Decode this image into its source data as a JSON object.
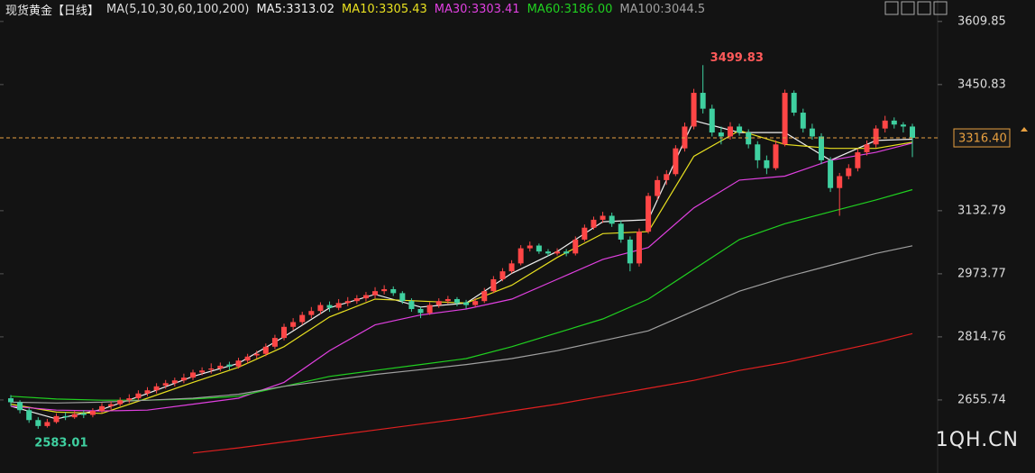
{
  "chart_data": {
    "type": "candlestick",
    "title": "现货黄金【日线】",
    "indicator": "MA(5,10,30,60,100,200)",
    "up_color": "#ff4646",
    "down_color": "#3fd0a0",
    "ylim": [
      2517,
      3664
    ],
    "yticks": [
      2655.74,
      2814.76,
      2973.77,
      3132.79,
      3450.83,
      3609.85
    ],
    "candles": [
      [
        2660,
        2668,
        2640,
        2650
      ],
      [
        2650,
        2655,
        2622,
        2630
      ],
      [
        2630,
        2636,
        2598,
        2605
      ],
      [
        2605,
        2612,
        2583.01,
        2590
      ],
      [
        2590,
        2608,
        2586,
        2600
      ],
      [
        2600,
        2622,
        2596,
        2615
      ],
      [
        2615,
        2625,
        2605,
        2612
      ],
      [
        2612,
        2628,
        2608,
        2620
      ],
      [
        2622,
        2630,
        2610,
        2618
      ],
      [
        2618,
        2635,
        2612,
        2628
      ],
      [
        2628,
        2648,
        2622,
        2640
      ],
      [
        2640,
        2652,
        2632,
        2645
      ],
      [
        2645,
        2662,
        2640,
        2655
      ],
      [
        2655,
        2670,
        2648,
        2660
      ],
      [
        2660,
        2680,
        2655,
        2672
      ],
      [
        2672,
        2688,
        2665,
        2680
      ],
      [
        2680,
        2698,
        2672,
        2690
      ],
      [
        2692,
        2706,
        2684,
        2698
      ],
      [
        2698,
        2712,
        2690,
        2705
      ],
      [
        2705,
        2722,
        2698,
        2712
      ],
      [
        2712,
        2732,
        2706,
        2725
      ],
      [
        2725,
        2738,
        2718,
        2730
      ],
      [
        2732,
        2748,
        2722,
        2735
      ],
      [
        2735,
        2750,
        2728,
        2742
      ],
      [
        2745,
        2752,
        2732,
        2740
      ],
      [
        2740,
        2762,
        2735,
        2755
      ],
      [
        2755,
        2772,
        2748,
        2765
      ],
      [
        2768,
        2780,
        2760,
        2772
      ],
      [
        2772,
        2798,
        2766,
        2790
      ],
      [
        2790,
        2820,
        2784,
        2812
      ],
      [
        2812,
        2848,
        2806,
        2840
      ],
      [
        2840,
        2862,
        2832,
        2852
      ],
      [
        2852,
        2878,
        2845,
        2870
      ],
      [
        2870,
        2890,
        2862,
        2880
      ],
      [
        2880,
        2902,
        2872,
        2895
      ],
      [
        2895,
        2904,
        2878,
        2888
      ],
      [
        2888,
        2910,
        2882,
        2900
      ],
      [
        2900,
        2915,
        2892,
        2905
      ],
      [
        2905,
        2920,
        2898,
        2912
      ],
      [
        2912,
        2928,
        2904,
        2920
      ],
      [
        2920,
        2940,
        2912,
        2930
      ],
      [
        2930,
        2945,
        2922,
        2935
      ],
      [
        2935,
        2942,
        2918,
        2925
      ],
      [
        2925,
        2930,
        2898,
        2905
      ],
      [
        2905,
        2912,
        2878,
        2885
      ],
      [
        2885,
        2890,
        2862,
        2875
      ],
      [
        2875,
        2902,
        2870,
        2895
      ],
      [
        2895,
        2912,
        2888,
        2905
      ],
      [
        2905,
        2918,
        2898,
        2910
      ],
      [
        2910,
        2915,
        2892,
        2900
      ],
      [
        2902,
        2908,
        2886,
        2895
      ],
      [
        2895,
        2912,
        2890,
        2905
      ],
      [
        2905,
        2938,
        2900,
        2930
      ],
      [
        2930,
        2968,
        2925,
        2960
      ],
      [
        2960,
        2988,
        2955,
        2980
      ],
      [
        2980,
        3008,
        2975,
        3000
      ],
      [
        3000,
        3046,
        2995,
        3038
      ],
      [
        3038,
        3055,
        3030,
        3045
      ],
      [
        3045,
        3050,
        3024,
        3030
      ],
      [
        3030,
        3036,
        3018,
        3025
      ],
      [
        3025,
        3038,
        3020,
        3030
      ],
      [
        3030,
        3036,
        3018,
        3025
      ],
      [
        3025,
        3068,
        3020,
        3060
      ],
      [
        3060,
        3098,
        3055,
        3090
      ],
      [
        3090,
        3118,
        3085,
        3110
      ],
      [
        3110,
        3130,
        3102,
        3120
      ],
      [
        3120,
        3128,
        3092,
        3100
      ],
      [
        3100,
        3108,
        3052,
        3060
      ],
      [
        3060,
        3068,
        2980,
        3000
      ],
      [
        3000,
        3088,
        2992,
        3080
      ],
      [
        3080,
        3178,
        3075,
        3170
      ],
      [
        3170,
        3220,
        3160,
        3210
      ],
      [
        3210,
        3235,
        3198,
        3225
      ],
      [
        3225,
        3298,
        3220,
        3290
      ],
      [
        3290,
        3355,
        3282,
        3345
      ],
      [
        3345,
        3440,
        3338,
        3430
      ],
      [
        3430,
        3499.83,
        3378,
        3390
      ],
      [
        3390,
        3400,
        3320,
        3330
      ],
      [
        3330,
        3345,
        3300,
        3320
      ],
      [
        3320,
        3356,
        3312,
        3345
      ],
      [
        3345,
        3352,
        3322,
        3330
      ],
      [
        3330,
        3338,
        3290,
        3300
      ],
      [
        3300,
        3308,
        3240,
        3260
      ],
      [
        3260,
        3272,
        3225,
        3240
      ],
      [
        3240,
        3310,
        3235,
        3300
      ],
      [
        3300,
        3438,
        3295,
        3430
      ],
      [
        3430,
        3436,
        3372,
        3380
      ],
      [
        3380,
        3390,
        3330,
        3340
      ],
      [
        3340,
        3352,
        3312,
        3320
      ],
      [
        3320,
        3328,
        3250,
        3260
      ],
      [
        3260,
        3268,
        3180,
        3190
      ],
      [
        3190,
        3228,
        3120,
        3220
      ],
      [
        3220,
        3250,
        3212,
        3240
      ],
      [
        3240,
        3288,
        3232,
        3280
      ],
      [
        3280,
        3310,
        3272,
        3300
      ],
      [
        3300,
        3348,
        3292,
        3340
      ],
      [
        3340,
        3372,
        3330,
        3360
      ],
      [
        3360,
        3368,
        3340,
        3350
      ],
      [
        3350,
        3356,
        3330,
        3345
      ],
      [
        3345,
        3352,
        3268,
        3316.4
      ]
    ],
    "series": [
      {
        "name": "MA5:3313.02",
        "color": "#f0f0f0",
        "x": [
          0,
          5,
          10,
          15,
          20,
          25,
          30,
          35,
          40,
          45,
          50,
          55,
          60,
          65,
          70,
          75,
          80,
          85,
          90,
          95,
          99
        ],
        "values": [
          2640,
          2608,
          2632,
          2672,
          2715,
          2748,
          2815,
          2888,
          2922,
          2890,
          2900,
          2975,
          3030,
          3105,
          3110,
          3360,
          3330,
          3330,
          3260,
          3310,
          3313.02
        ]
      },
      {
        "name": "MA10:3305.43",
        "color": "#e8e020",
        "x": [
          0,
          5,
          10,
          15,
          20,
          25,
          30,
          35,
          40,
          45,
          50,
          55,
          60,
          65,
          70,
          75,
          80,
          85,
          90,
          95,
          99
        ],
        "values": [
          2645,
          2625,
          2622,
          2660,
          2700,
          2738,
          2790,
          2865,
          2910,
          2905,
          2900,
          2945,
          3015,
          3075,
          3080,
          3270,
          3335,
          3300,
          3290,
          3290,
          3305.43
        ]
      },
      {
        "name": "MA30:3303.41",
        "color": "#e040e0",
        "x": [
          0,
          5,
          10,
          15,
          20,
          25,
          30,
          35,
          40,
          45,
          50,
          55,
          60,
          65,
          70,
          75,
          80,
          85,
          90,
          95,
          99
        ],
        "values": [
          2640,
          2630,
          2628,
          2630,
          2645,
          2660,
          2700,
          2780,
          2845,
          2870,
          2885,
          2910,
          2960,
          3010,
          3040,
          3140,
          3210,
          3220,
          3260,
          3280,
          3303.41
        ]
      },
      {
        "name": "MA60:3186.00",
        "color": "#20d020",
        "x": [
          0,
          5,
          10,
          15,
          20,
          25,
          30,
          35,
          40,
          45,
          50,
          55,
          60,
          65,
          70,
          75,
          80,
          85,
          90,
          95,
          99
        ],
        "values": [
          2665,
          2658,
          2655,
          2655,
          2658,
          2665,
          2690,
          2715,
          2730,
          2745,
          2760,
          2790,
          2825,
          2860,
          2910,
          2985,
          3060,
          3100,
          3130,
          3160,
          3186
        ]
      },
      {
        "name": "MA100:3044.5",
        "color": "#a0a0a0",
        "x": [
          0,
          5,
          10,
          15,
          20,
          25,
          30,
          35,
          40,
          45,
          50,
          55,
          60,
          65,
          70,
          75,
          80,
          85,
          90,
          95,
          99
        ],
        "values": [
          2650,
          2648,
          2650,
          2655,
          2660,
          2670,
          2690,
          2705,
          2720,
          2732,
          2745,
          2760,
          2780,
          2805,
          2830,
          2880,
          2930,
          2965,
          2995,
          3025,
          3044.5
        ]
      },
      {
        "color": "#e02020",
        "x": [
          0,
          5,
          10,
          15,
          20,
          25,
          30,
          35,
          40,
          45,
          50,
          55,
          60,
          65,
          70,
          75,
          80,
          85,
          90,
          95,
          99
        ],
        "values": [
          null,
          null,
          null,
          null,
          2522,
          2535,
          2550,
          2565,
          2580,
          2595,
          2610,
          2628,
          2645,
          2665,
          2685,
          2705,
          2730,
          2750,
          2775,
          2800,
          2823
        ]
      }
    ],
    "high_label": 3499.83,
    "low_label": 2583.01,
    "price_line": {
      "value": 3316.4,
      "label": "3316.40"
    },
    "watermark": "1QH.CN"
  }
}
